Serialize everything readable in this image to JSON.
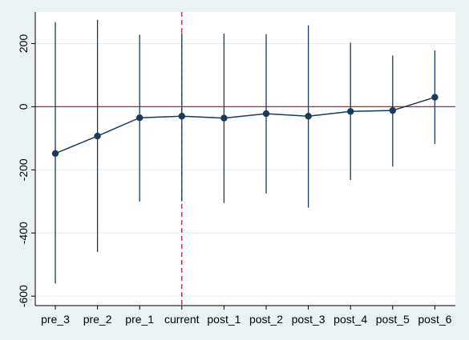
{
  "chart_data": {
    "type": "line",
    "title": "",
    "xlabel": "",
    "ylabel": "",
    "categories": [
      "pre_3",
      "pre_2",
      "pre_1",
      "current",
      "post_1",
      "post_2",
      "post_3",
      "post_4",
      "post_5",
      "post_6"
    ],
    "series": [
      {
        "values": [
          -148,
          -93,
          -35,
          -30,
          -36,
          -22,
          -30,
          -15,
          -12,
          30
        ],
        "ci_lower": [
          -560,
          -460,
          -300,
          -300,
          -305,
          -275,
          -320,
          -232,
          -190,
          -118
        ],
        "ci_upper": [
          268,
          275,
          228,
          233,
          232,
          230,
          258,
          203,
          162,
          178
        ]
      }
    ],
    "ylim": [
      -630,
      300
    ],
    "yticks": [
      200,
      0,
      -200,
      -400,
      -600
    ],
    "ytick_labels": [
      "200",
      "0",
      "-200",
      "-400",
      "-600"
    ],
    "reference_line_y": 0,
    "reference_line_x_category": "current",
    "grid": true,
    "legend": "none",
    "colors": {
      "background": "#eaf2f3",
      "plot_background": "#ffffff",
      "series": "#1a3a5c",
      "reference": "#b02050",
      "grid": "#e8eef0"
    }
  }
}
